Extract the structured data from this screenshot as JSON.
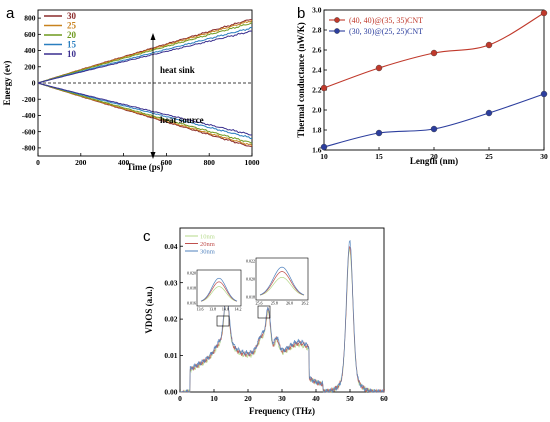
{
  "chart_data": [
    {
      "panel": "a",
      "type": "line",
      "xlabel": "Time (ps)",
      "ylabel": "Energy (ev)",
      "xlim": [
        0,
        1000
      ],
      "ylim": [
        -900,
        900
      ],
      "xticks": [
        0,
        200,
        400,
        600,
        800,
        1000
      ],
      "yticks": [
        -800,
        -600,
        -400,
        -200,
        0,
        200,
        400,
        600,
        800
      ],
      "annotations": [
        "heat sink",
        "heat source"
      ],
      "legend_position": "top-left",
      "series": [
        {
          "name": "30",
          "color": "#8b2b2b",
          "end_value": 790
        },
        {
          "name": "25",
          "color": "#c8821e",
          "end_value": 770
        },
        {
          "name": "20",
          "color": "#6f9a1e",
          "end_value": 740
        },
        {
          "name": "15",
          "color": "#2a7fbf",
          "end_value": 680
        },
        {
          "name": "10",
          "color": "#3a2f8f",
          "end_value": 640
        }
      ]
    },
    {
      "panel": "b",
      "type": "line",
      "xlabel": "Length (nm)",
      "ylabel": "Thermal conductance (nW/K)",
      "xlim": [
        10,
        30
      ],
      "ylim": [
        1.6,
        3.0
      ],
      "xticks": [
        10,
        15,
        20,
        25,
        30
      ],
      "yticks": [
        1.6,
        1.8,
        2.0,
        2.2,
        2.4,
        2.6,
        2.8,
        3.0
      ],
      "legend_position": "top-left",
      "series": [
        {
          "name": "(40, 40)@(35, 35)CNT",
          "color": "#c0392b",
          "x": [
            10,
            15,
            20,
            25,
            30
          ],
          "y": [
            2.22,
            2.42,
            2.57,
            2.65,
            2.97
          ]
        },
        {
          "name": "(30, 30)@(25, 25)CNT",
          "color": "#2c3e9e",
          "x": [
            10,
            15,
            20,
            25,
            30
          ],
          "y": [
            1.63,
            1.77,
            1.81,
            1.97,
            2.16
          ]
        }
      ]
    },
    {
      "panel": "c",
      "type": "line",
      "xlabel": "Frequency (THz)",
      "ylabel": "VDOS (a.u.)",
      "xlim": [
        0,
        60
      ],
      "ylim": [
        0,
        0.045
      ],
      "xticks": [
        0,
        10,
        20,
        30,
        40,
        50,
        60
      ],
      "yticks": [
        0.0,
        0.01,
        0.02,
        0.03,
        0.04
      ],
      "legend_position": "top-left",
      "series": [
        {
          "name": "10nm",
          "color": "#b5d98a"
        },
        {
          "name": "20nm",
          "color": "#c0504d"
        },
        {
          "name": "30nm",
          "color": "#4f81bd"
        }
      ],
      "insets": [
        {
          "xticks": [
            "13.6",
            "13.8",
            "14.0",
            "14.2"
          ],
          "yticks": [
            "0.016",
            "0.018",
            "0.020"
          ]
        },
        {
          "xticks": [
            "25.6",
            "25.8",
            "26.0",
            "26.2"
          ],
          "yticks": [
            "0.018",
            "0.020",
            "0.022"
          ]
        }
      ]
    }
  ]
}
